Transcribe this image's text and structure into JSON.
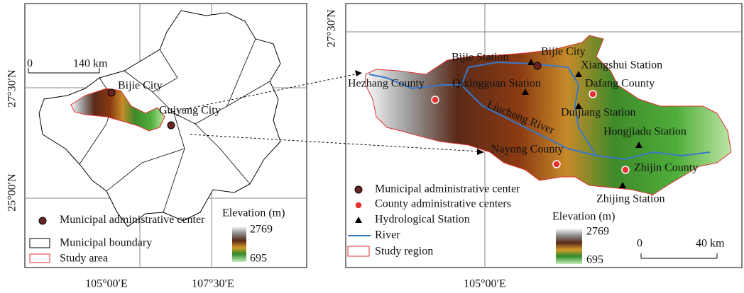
{
  "left_map": {
    "scale_bar": {
      "start": "0",
      "end": "140 km"
    },
    "places": {
      "bijie_city": "Bijie City",
      "guiyang_city": "Guiyang City"
    },
    "legend": {
      "municipal_center": "Municipal administrative center",
      "municipal_boundary": "Municipal boundary",
      "study_area": "Study area",
      "elevation_title": "Elevation (m)",
      "elevation_max": "2769",
      "elevation_min": "695"
    },
    "longitudes": [
      "105°00′E",
      "107°30′E"
    ],
    "latitudes": [
      "27°30′N",
      "25°00′N"
    ]
  },
  "right_map": {
    "longitudes": [
      "105°00′E"
    ],
    "latitudes": [
      "27°30′N"
    ],
    "places": {
      "bijie_station": "Bijie Station",
      "bijie_city": "Bijie City",
      "xiangshui_station": "Xiangshui Station",
      "hezhang_county": "Hezhang County",
      "qixingguan_station": "Qixingguan Station",
      "dafang_county": "Dafang County",
      "liuchong_river": "Liuchong River",
      "duijiang_station": "Duijiang Station",
      "hongjiadu_station": "Hongjiadu Station",
      "nayong_county": "Nayong County",
      "zhijin_county": "Zhijin County",
      "zhijing_station": "Zhijing Station"
    },
    "legend": {
      "municipal_center": "Municipal administrative center",
      "county_centers": "County administrative centers",
      "hydrological_station": "Hydrological Station",
      "river": "River",
      "study_region": "Study region",
      "elevation_title": "Elevation (m)",
      "elevation_max": "2769",
      "elevation_min": "695"
    },
    "scale_bar": {
      "start": "0",
      "end": "40 km"
    }
  }
}
